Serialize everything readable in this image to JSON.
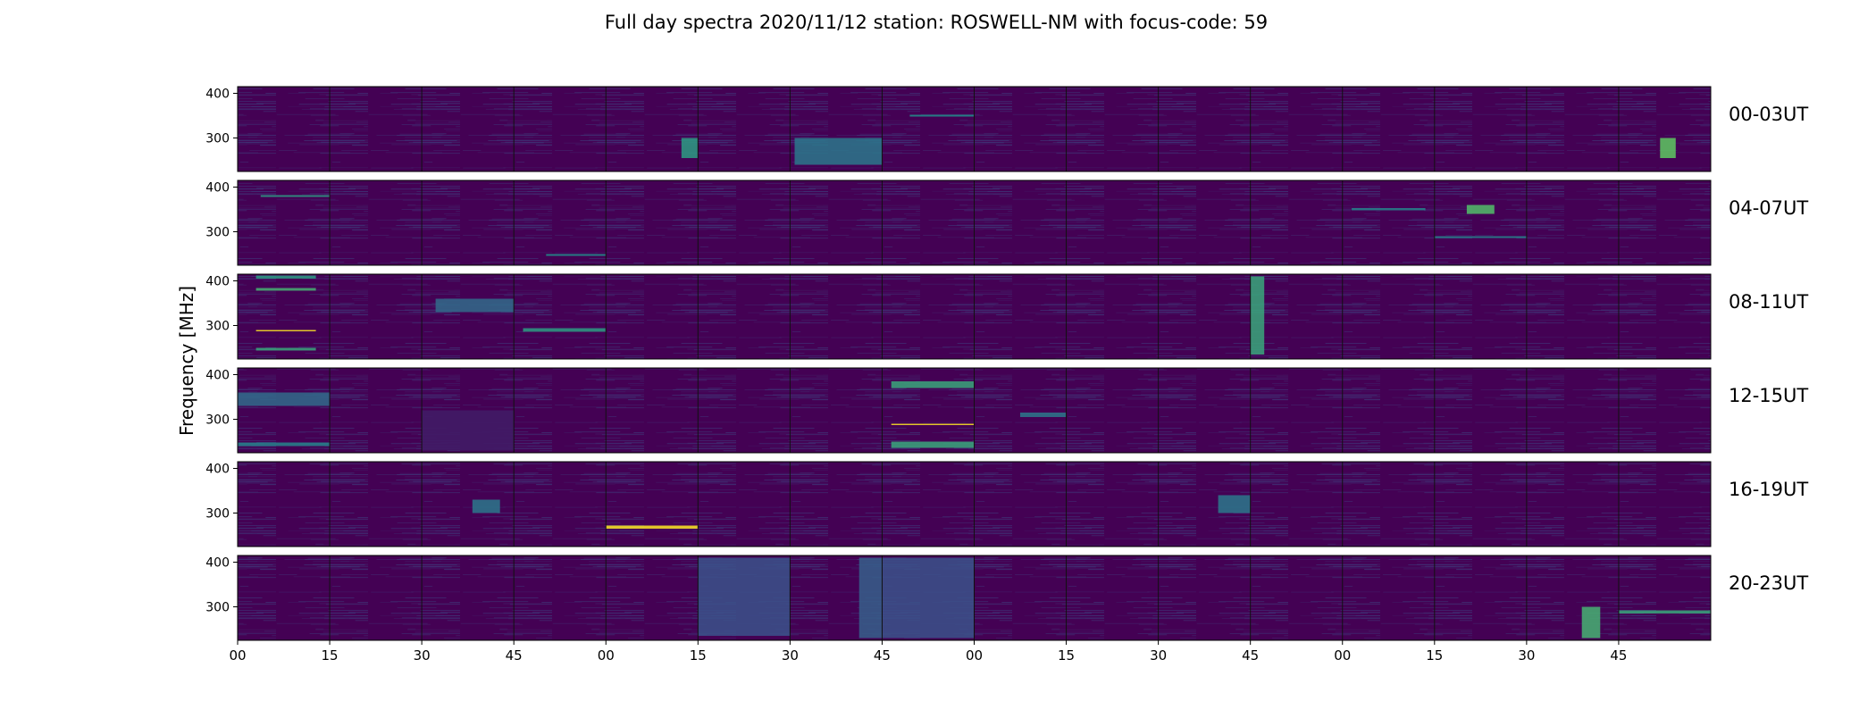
{
  "chart_data": {
    "type": "heatmap",
    "title": "Full day spectra 2020/11/12 station: ROSWELL-NM with focus-code: 59",
    "ylabel": "Frequency [MHz]",
    "xlabel": "",
    "ylim": [
      225,
      415
    ],
    "y_ticks": [
      "400",
      "300"
    ],
    "y_tick_values": [
      400,
      300
    ],
    "x_ticks": [
      "00",
      "15",
      "30",
      "45",
      "00",
      "15",
      "30",
      "45",
      "00",
      "15",
      "30",
      "45",
      "00",
      "15",
      "30",
      "45"
    ],
    "grid": false,
    "colormap": "viridis",
    "colors": {
      "background": "#440154",
      "low": "#472d7b",
      "mid": "#2c728e",
      "high": "#28ae80",
      "peak": "#fde725"
    },
    "rows": [
      {
        "label": "00-03UT",
        "features": [
          {
            "panel": 4,
            "t": [
              0.82,
              1.0
            ],
            "f": [
              255,
              300
            ],
            "v": 0.55
          },
          {
            "panel": 6,
            "t": [
              0.05,
              1.0
            ],
            "f": [
              240,
              300
            ],
            "v": 0.4
          },
          {
            "panel": 7,
            "t": [
              0.3,
              1.0
            ],
            "f": [
              348,
              352
            ],
            "v": 0.5
          },
          {
            "panel": 15,
            "t": [
              0.45,
              0.62
            ],
            "f": [
              255,
              300
            ],
            "v": 0.75
          }
        ]
      },
      {
        "label": "04-07UT",
        "features": [
          {
            "panel": 0,
            "t": [
              0.25,
              1.0
            ],
            "f": [
              378,
              382
            ],
            "v": 0.55
          },
          {
            "panel": 3,
            "t": [
              0.35,
              1.0
            ],
            "f": [
              246,
              250
            ],
            "v": 0.5
          },
          {
            "panel": 12,
            "t": [
              0.1,
              0.9
            ],
            "f": [
              348,
              353
            ],
            "v": 0.45
          },
          {
            "panel": 13,
            "t": [
              0.35,
              0.65
            ],
            "f": [
              340,
              360
            ],
            "v": 0.7
          },
          {
            "panel": 13,
            "t": [
              0.0,
              1.0
            ],
            "f": [
              286,
              290
            ],
            "v": 0.45
          }
        ]
      },
      {
        "label": "08-11UT",
        "features": [
          {
            "panel": 0,
            "t": [
              0.2,
              0.85
            ],
            "f": [
              378,
              384
            ],
            "v": 0.65
          },
          {
            "panel": 0,
            "t": [
              0.2,
              0.85
            ],
            "f": [
              405,
              412
            ],
            "v": 0.55
          },
          {
            "panel": 0,
            "t": [
              0.2,
              0.85
            ],
            "f": [
              287,
              290
            ],
            "v": 1.0
          },
          {
            "panel": 0,
            "t": [
              0.2,
              0.85
            ],
            "f": [
              244,
              250
            ],
            "v": 0.6
          },
          {
            "panel": 2,
            "t": [
              0.15,
              1.0
            ],
            "f": [
              330,
              360
            ],
            "v": 0.35
          },
          {
            "panel": 3,
            "t": [
              0.1,
              1.0
            ],
            "f": [
              286,
              294
            ],
            "v": 0.55
          },
          {
            "panel": 11,
            "t": [
              0.0,
              0.15
            ],
            "f": [
              235,
              410
            ],
            "v": 0.6
          }
        ]
      },
      {
        "label": "12-15UT",
        "features": [
          {
            "panel": 0,
            "t": [
              0.0,
              1.0
            ],
            "f": [
              330,
              360
            ],
            "v": 0.35
          },
          {
            "panel": 0,
            "t": [
              0.0,
              1.0
            ],
            "f": [
              240,
              248
            ],
            "v": 0.45
          },
          {
            "panel": 2,
            "t": [
              0.0,
              1.0
            ],
            "f": [
              230,
              320
            ],
            "v": 0.08
          },
          {
            "panel": 7,
            "t": [
              0.1,
              1.0
            ],
            "f": [
              370,
              385
            ],
            "v": 0.6
          },
          {
            "panel": 7,
            "t": [
              0.1,
              1.0
            ],
            "f": [
              287,
              290
            ],
            "v": 1.0
          },
          {
            "panel": 7,
            "t": [
              0.1,
              1.0
            ],
            "f": [
              236,
              250
            ],
            "v": 0.6
          },
          {
            "panel": 8,
            "t": [
              0.5,
              1.0
            ],
            "f": [
              305,
              315
            ],
            "v": 0.4
          }
        ]
      },
      {
        "label": "16-19UT",
        "features": [
          {
            "panel": 2,
            "t": [
              0.55,
              0.85
            ],
            "f": [
              300,
              330
            ],
            "v": 0.4
          },
          {
            "panel": 4,
            "t": [
              0.0,
              1.0
            ],
            "f": [
              265,
              272
            ],
            "v": 1.0
          },
          {
            "panel": 10,
            "t": [
              0.65,
              1.0
            ],
            "f": [
              300,
              340
            ],
            "v": 0.4
          }
        ]
      },
      {
        "label": "20-23UT",
        "features": [
          {
            "panel": 5,
            "t": [
              0.0,
              1.0
            ],
            "f": [
              235,
              410
            ],
            "v": 0.25
          },
          {
            "panel": 6,
            "t": [
              0.75,
              1.0
            ],
            "f": [
              230,
              410
            ],
            "v": 0.3
          },
          {
            "panel": 7,
            "t": [
              0.0,
              1.0
            ],
            "f": [
              230,
              410
            ],
            "v": 0.25
          },
          {
            "panel": 14,
            "t": [
              0.6,
              0.8
            ],
            "f": [
              230,
              300
            ],
            "v": 0.65
          },
          {
            "panel": 15,
            "t": [
              0.0,
              1.0
            ],
            "f": [
              285,
              292
            ],
            "v": 0.6
          }
        ]
      }
    ]
  }
}
